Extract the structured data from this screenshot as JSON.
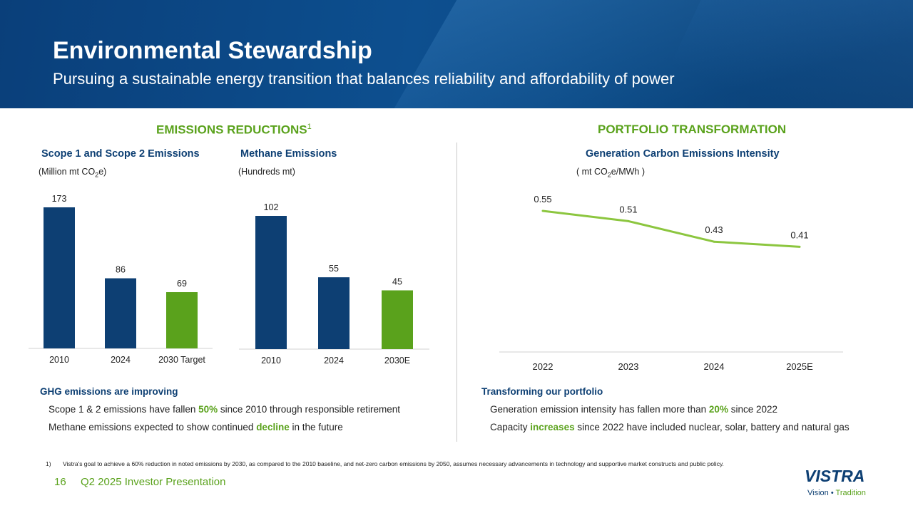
{
  "header": {
    "title": "Environmental Stewardship",
    "subtitle": "Pursuing a sustainable energy transition that balances reliability and affordability of power"
  },
  "sections": {
    "emissions": {
      "label": "EMISSIONS REDUCTIONS",
      "footnote_marker": "1"
    },
    "portfolio": {
      "label": "PORTFOLIO TRANSFORMATION"
    }
  },
  "colors": {
    "navy": "#0d3f73",
    "green": "#5aa21c",
    "line": "#8cc63f"
  },
  "chart_data": [
    {
      "type": "bar",
      "title": "Scope 1 and Scope 2 Emissions",
      "ylabel_prefix": "(Million mt CO",
      "ylabel_sub": "2",
      "ylabel_suffix": "e)",
      "categories": [
        "2010",
        "2024",
        "2030 Target"
      ],
      "values": [
        173,
        86,
        69
      ],
      "value_labels": [
        "173",
        "86",
        "69"
      ],
      "bar_colors": [
        "#0d3f73",
        "#0d3f73",
        "#5aa21c"
      ],
      "ylim": [
        0,
        173
      ]
    },
    {
      "type": "bar",
      "title": "Methane Emissions",
      "ylabel": "(Hundreds mt)",
      "categories": [
        "2010",
        "2024",
        "2030E"
      ],
      "values": [
        102,
        55,
        45
      ],
      "value_labels": [
        "102",
        "55",
        "45"
      ],
      "bar_colors": [
        "#0d3f73",
        "#0d3f73",
        "#5aa21c"
      ],
      "ylim": [
        0,
        102
      ]
    },
    {
      "type": "line",
      "title": "Generation Carbon Emissions Intensity",
      "ylabel_prefix": "( mt CO",
      "ylabel_sub": "2",
      "ylabel_suffix": "e/MWh )",
      "categories": [
        "2022",
        "2023",
        "2024",
        "2025E"
      ],
      "values": [
        0.55,
        0.51,
        0.43,
        0.41
      ],
      "value_labels": [
        "0.55",
        "0.51",
        "0.43",
        "0.41"
      ],
      "ylim": [
        0,
        0.55
      ]
    }
  ],
  "left_bullets": {
    "head": "GHG emissions are improving",
    "b1_pre": "Scope 1 & 2 emissions have fallen ",
    "b1_hl": "50%",
    "b1_post": " since 2010 through responsible retirement",
    "b2_pre": "Methane emissions expected to show continued ",
    "b2_hl": "decline",
    "b2_post": " in the future"
  },
  "right_bullets": {
    "head": "Transforming our portfolio",
    "b1_pre": "Generation emission intensity has fallen more than ",
    "b1_hl": "20%",
    "b1_post": " since 2022",
    "b2_pre": "Capacity ",
    "b2_hl": "increases",
    "b2_post": " since 2022 have included nuclear, solar, battery and natural gas"
  },
  "footnote": {
    "number": "1)",
    "text": "Vistra's goal to achieve a 60% reduction in noted emissions by 2030, as compared to the 2010 baseline, and net-zero carbon emissions by 2050, assumes necessary advancements in technology and supportive market constructs and public policy."
  },
  "footer": {
    "page": "16",
    "deck": "Q2 2025 Investor Presentation",
    "logo_text": "VISTRA",
    "logo_tag_a": "Vision",
    "logo_tag_sep": " • ",
    "logo_tag_b": "Tradition"
  }
}
